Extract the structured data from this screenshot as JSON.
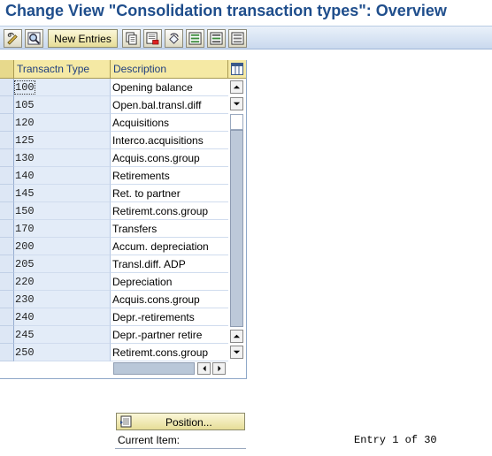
{
  "window": {
    "title": "Change View \"Consolidation transaction types\": Overview"
  },
  "toolbar": {
    "new_entries_label": "New Entries",
    "icons": [
      "display-change-icon",
      "details-icon",
      "copy-icon",
      "delete-icon",
      "undo-icon",
      "select-all-icon",
      "select-block-icon",
      "deselect-all-icon"
    ]
  },
  "table": {
    "columns": [
      "Transactn Type",
      "Description"
    ],
    "rows": [
      {
        "type": "100",
        "description": "Opening balance"
      },
      {
        "type": "105",
        "description": "Open.bal.transl.diff"
      },
      {
        "type": "120",
        "description": "Acquisitions"
      },
      {
        "type": "125",
        "description": "Interco.acquisitions"
      },
      {
        "type": "130",
        "description": "Acquis.cons.group"
      },
      {
        "type": "140",
        "description": "Retirements"
      },
      {
        "type": "145",
        "description": "Ret. to partner"
      },
      {
        "type": "150",
        "description": "Retiremt.cons.group"
      },
      {
        "type": "170",
        "description": "Transfers"
      },
      {
        "type": "200",
        "description": "Accum. depreciation"
      },
      {
        "type": "205",
        "description": "Transl.diff. ADP"
      },
      {
        "type": "220",
        "description": "Depreciation"
      },
      {
        "type": "230",
        "description": "Acquis.cons.group"
      },
      {
        "type": "240",
        "description": "Depr.-retirements"
      },
      {
        "type": "245",
        "description": "Depr.-partner retire"
      },
      {
        "type": "250",
        "description": "Retiremt.cons.group"
      }
    ]
  },
  "footer": {
    "position_label": "Position...",
    "current_item_label": "Current Item:",
    "entry_info": "Entry 1 of 30"
  },
  "colors": {
    "title": "#1f4e8c",
    "header_bg": "#f5e9a4",
    "key_column_bg": "#e3ecf8"
  }
}
